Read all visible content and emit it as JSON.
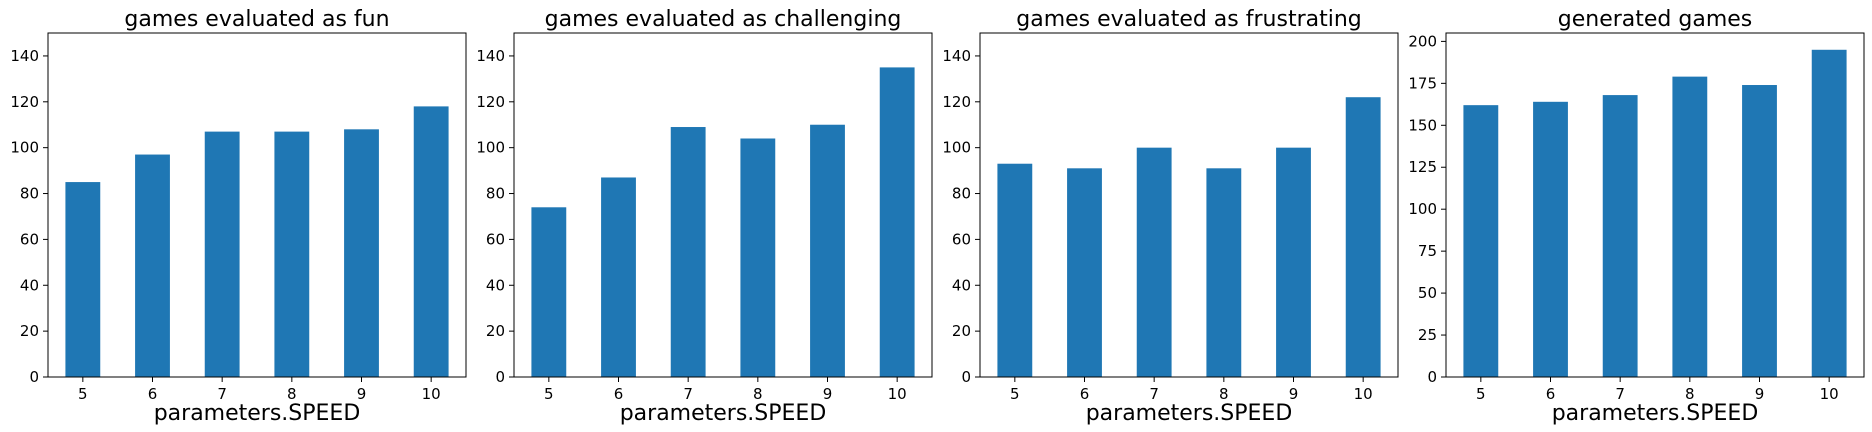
{
  "chart_data": [
    {
      "type": "bar",
      "title": "games evaluated as fun",
      "xlabel": "parameters.SPEED",
      "ylabel": "",
      "categories": [
        "5",
        "6",
        "7",
        "8",
        "9",
        "10"
      ],
      "values": [
        85,
        97,
        107,
        107,
        108,
        118
      ],
      "ylim": [
        0,
        150
      ],
      "yticks": [
        0,
        20,
        40,
        60,
        80,
        100,
        120,
        140
      ],
      "grid": false,
      "color": "#1f77b4"
    },
    {
      "type": "bar",
      "title": "games evaluated as challenging",
      "xlabel": "parameters.SPEED",
      "ylabel": "",
      "categories": [
        "5",
        "6",
        "7",
        "8",
        "9",
        "10"
      ],
      "values": [
        74,
        87,
        109,
        104,
        110,
        135
      ],
      "ylim": [
        0,
        150
      ],
      "yticks": [
        0,
        20,
        40,
        60,
        80,
        100,
        120,
        140
      ],
      "grid": false,
      "color": "#1f77b4"
    },
    {
      "type": "bar",
      "title": "games evaluated as frustrating",
      "xlabel": "parameters.SPEED",
      "ylabel": "",
      "categories": [
        "5",
        "6",
        "7",
        "8",
        "9",
        "10"
      ],
      "values": [
        93,
        91,
        100,
        91,
        100,
        122
      ],
      "ylim": [
        0,
        150
      ],
      "yticks": [
        0,
        20,
        40,
        60,
        80,
        100,
        120,
        140
      ],
      "grid": false,
      "color": "#1f77b4"
    },
    {
      "type": "bar",
      "title": "generated games",
      "xlabel": "parameters.SPEED",
      "ylabel": "",
      "categories": [
        "5",
        "6",
        "7",
        "8",
        "9",
        "10"
      ],
      "values": [
        162,
        164,
        168,
        179,
        174,
        195
      ],
      "ylim": [
        0,
        205
      ],
      "yticks": [
        0,
        25,
        50,
        75,
        100,
        125,
        150,
        175,
        200
      ],
      "grid": false,
      "color": "#1f77b4"
    }
  ]
}
